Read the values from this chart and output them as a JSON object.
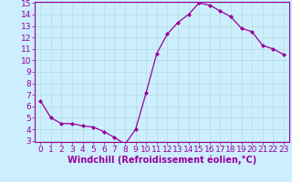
{
  "x": [
    0,
    1,
    2,
    3,
    4,
    5,
    6,
    7,
    8,
    9,
    10,
    11,
    12,
    13,
    14,
    15,
    16,
    17,
    18,
    19,
    20,
    21,
    22,
    23
  ],
  "y": [
    6.5,
    5.0,
    4.5,
    4.5,
    4.3,
    4.2,
    3.8,
    3.3,
    2.7,
    4.0,
    7.2,
    10.6,
    12.3,
    13.3,
    14.0,
    15.0,
    14.8,
    14.3,
    13.8,
    12.8,
    12.5,
    11.3,
    11.0,
    10.5
  ],
  "line_color": "#990099",
  "marker": "D",
  "marker_size": 2,
  "bg_color": "#cceeff",
  "grid_color": "#aaddcc",
  "xlabel": "Windchill (Refroidissement éolien,°C)",
  "ylabel": "",
  "ylim": [
    3,
    15
  ],
  "xlim": [
    -0.5,
    23.5
  ],
  "yticks": [
    3,
    4,
    5,
    6,
    7,
    8,
    9,
    10,
    11,
    12,
    13,
    14,
    15
  ],
  "xticks": [
    0,
    1,
    2,
    3,
    4,
    5,
    6,
    7,
    8,
    9,
    10,
    11,
    12,
    13,
    14,
    15,
    16,
    17,
    18,
    19,
    20,
    21,
    22,
    23
  ],
  "tick_color": "#990099",
  "axis_color": "#990099",
  "xlabel_color": "#990099",
  "xlabel_fontsize": 7,
  "tick_fontsize": 6.5
}
